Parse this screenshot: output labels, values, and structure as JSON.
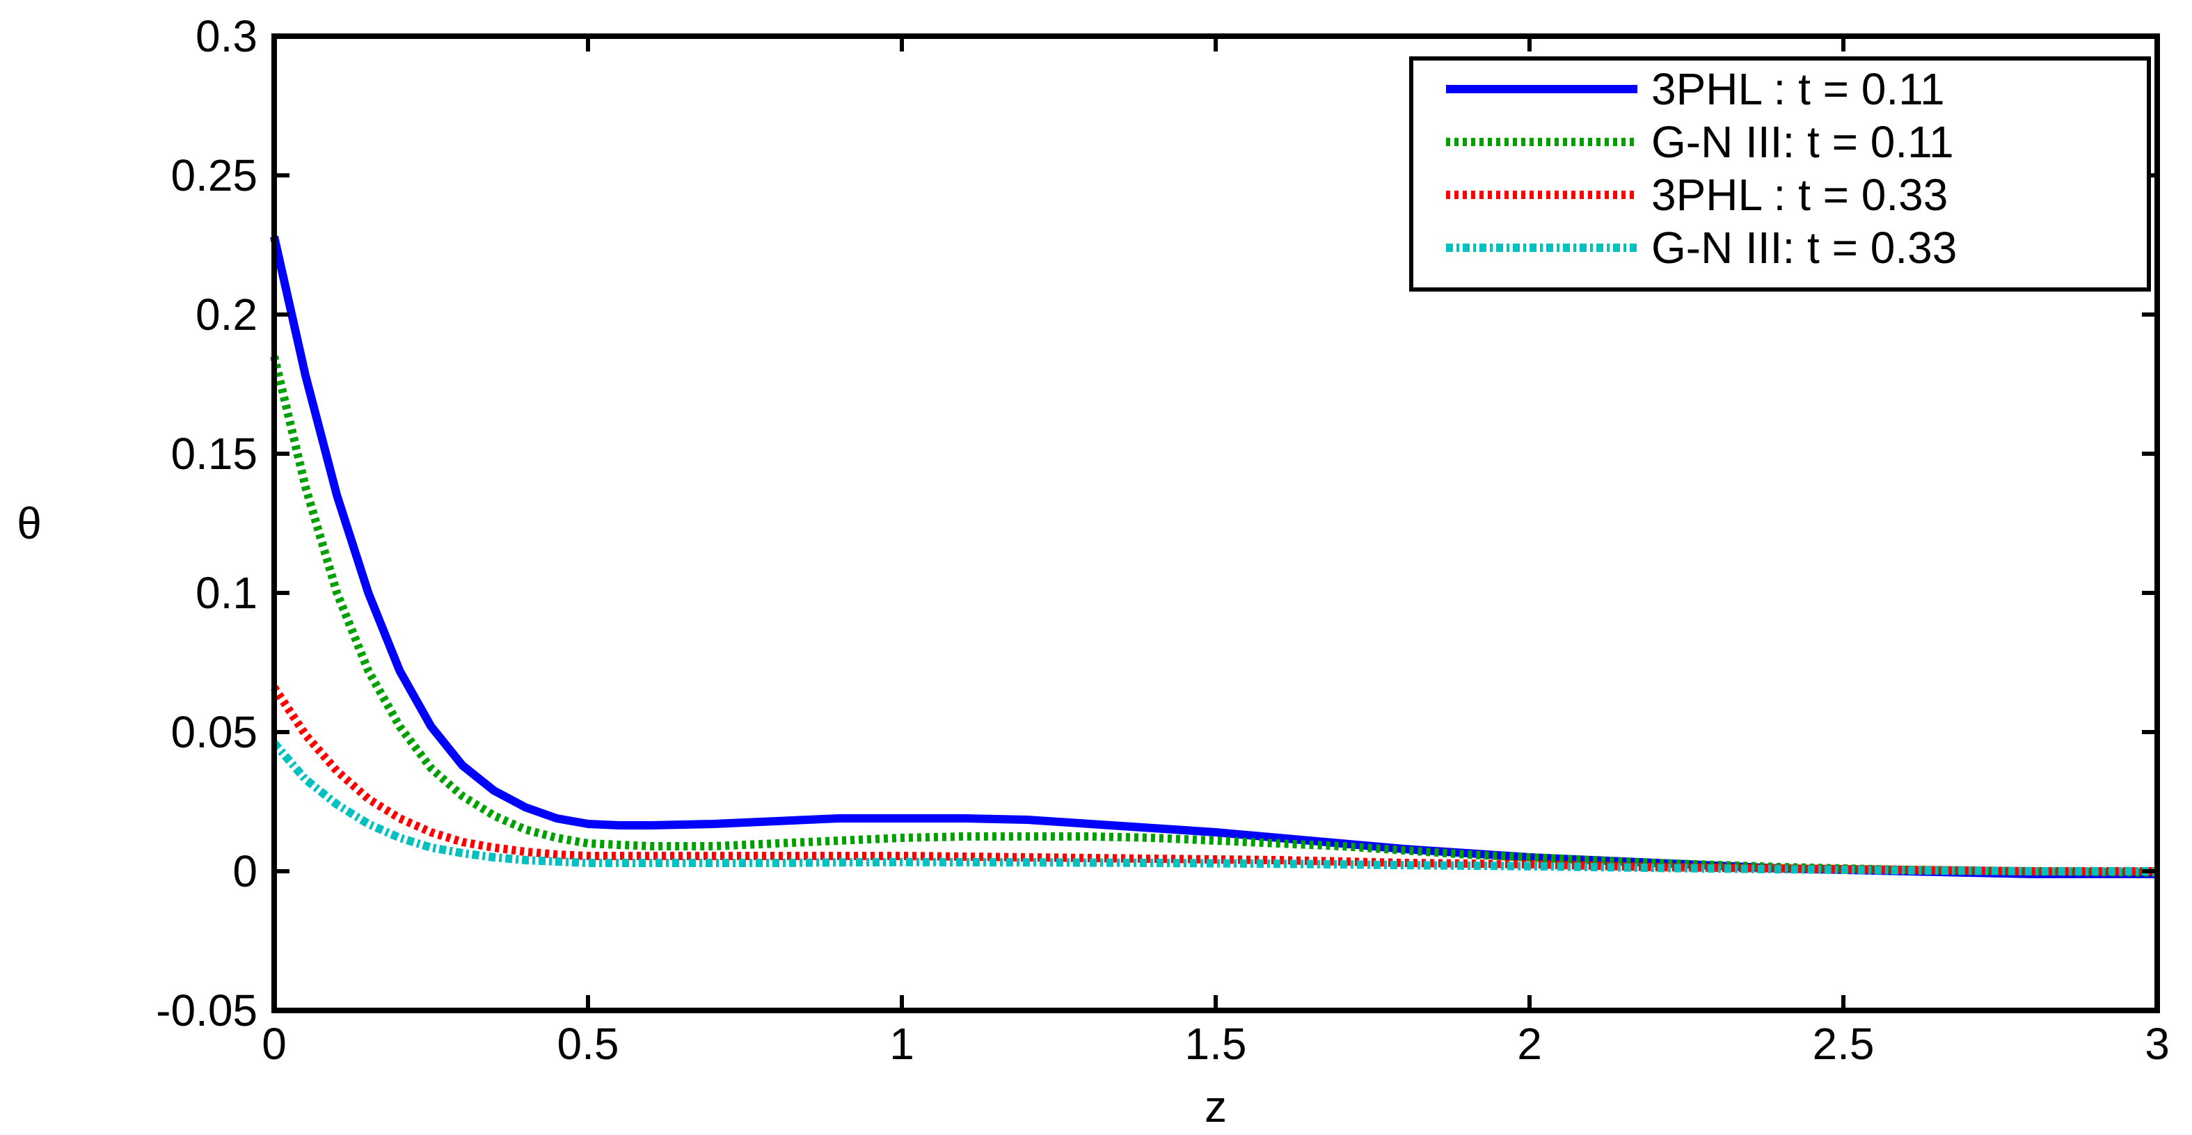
{
  "chart_data": {
    "type": "line",
    "title": "",
    "xlabel": "z",
    "ylabel": "θ",
    "xlim": [
      0,
      3
    ],
    "ylim": [
      -0.05,
      0.3
    ],
    "xticks": [
      0,
      0.5,
      1,
      1.5,
      2,
      2.5,
      3
    ],
    "xtick_labels": [
      "0",
      "0.5",
      "1",
      "1.5",
      "2",
      "2.5",
      "3"
    ],
    "yticks": [
      -0.05,
      0,
      0.05,
      0.1,
      0.15,
      0.2,
      0.25,
      0.3
    ],
    "ytick_labels": [
      "-0.05",
      "0",
      "0.05",
      "0.1",
      "0.15",
      "0.2",
      "0.25",
      "0.3"
    ],
    "grid": false,
    "legend_position": "top-right",
    "series": [
      {
        "name": "3PHL : t = 0.11",
        "color": "#0000ff",
        "style": "solid",
        "x": [
          0,
          0.05,
          0.1,
          0.15,
          0.2,
          0.25,
          0.3,
          0.35,
          0.4,
          0.45,
          0.5,
          0.55,
          0.6,
          0.7,
          0.8,
          0.9,
          1.0,
          1.1,
          1.2,
          1.3,
          1.4,
          1.5,
          1.6,
          1.7,
          1.8,
          1.9,
          2.0,
          2.2,
          2.4,
          2.6,
          2.8,
          3.0
        ],
        "y": [
          0.228,
          0.178,
          0.135,
          0.1,
          0.072,
          0.052,
          0.038,
          0.029,
          0.023,
          0.019,
          0.017,
          0.0165,
          0.0165,
          0.017,
          0.018,
          0.019,
          0.019,
          0.019,
          0.0185,
          0.017,
          0.0155,
          0.014,
          0.012,
          0.01,
          0.008,
          0.0065,
          0.005,
          0.003,
          0.001,
          0.0,
          -0.001,
          -0.001
        ]
      },
      {
        "name": "G-N III: t = 0.11",
        "color": "#00a000",
        "style": "dotted",
        "x": [
          0,
          0.05,
          0.1,
          0.15,
          0.2,
          0.25,
          0.3,
          0.35,
          0.4,
          0.45,
          0.5,
          0.55,
          0.6,
          0.7,
          0.8,
          0.9,
          1.0,
          1.1,
          1.2,
          1.3,
          1.4,
          1.5,
          1.6,
          1.7,
          1.8,
          1.9,
          2.0,
          2.2,
          2.4,
          2.6,
          2.8,
          3.0
        ],
        "y": [
          0.185,
          0.138,
          0.1,
          0.072,
          0.052,
          0.037,
          0.027,
          0.02,
          0.015,
          0.012,
          0.01,
          0.0095,
          0.009,
          0.009,
          0.01,
          0.011,
          0.012,
          0.0125,
          0.0125,
          0.0125,
          0.012,
          0.011,
          0.01,
          0.009,
          0.0075,
          0.006,
          0.005,
          0.003,
          0.0015,
          0.0005,
          0.0,
          -0.0005
        ]
      },
      {
        "name": "3PHL : t = 0.33",
        "color": "#ff0000",
        "style": "dotted",
        "x": [
          0,
          0.05,
          0.1,
          0.15,
          0.2,
          0.25,
          0.3,
          0.35,
          0.4,
          0.45,
          0.5,
          0.6,
          0.7,
          0.8,
          0.9,
          1.0,
          1.2,
          1.4,
          1.6,
          1.8,
          2.0,
          2.2,
          2.4,
          2.6,
          2.8,
          3.0
        ],
        "y": [
          0.066,
          0.049,
          0.036,
          0.026,
          0.019,
          0.014,
          0.0105,
          0.0085,
          0.007,
          0.006,
          0.0055,
          0.0055,
          0.0055,
          0.0055,
          0.0055,
          0.0055,
          0.005,
          0.0045,
          0.004,
          0.003,
          0.0025,
          0.0015,
          0.001,
          0.0005,
          0.0,
          0.0
        ]
      },
      {
        "name": "G-N III: t = 0.33",
        "color": "#00c0c0",
        "style": "dash-dot",
        "x": [
          0,
          0.05,
          0.1,
          0.15,
          0.2,
          0.25,
          0.3,
          0.35,
          0.4,
          0.45,
          0.5,
          0.6,
          0.7,
          0.8,
          0.9,
          1.0,
          1.2,
          1.4,
          1.6,
          1.8,
          2.0,
          2.2,
          2.4,
          2.6,
          2.8,
          3.0
        ],
        "y": [
          0.046,
          0.033,
          0.024,
          0.017,
          0.012,
          0.0085,
          0.0065,
          0.005,
          0.004,
          0.0035,
          0.003,
          0.003,
          0.003,
          0.003,
          0.0032,
          0.0033,
          0.0032,
          0.003,
          0.0027,
          0.0022,
          0.0018,
          0.0012,
          0.0007,
          0.0003,
          0.0,
          0.0
        ]
      }
    ]
  }
}
